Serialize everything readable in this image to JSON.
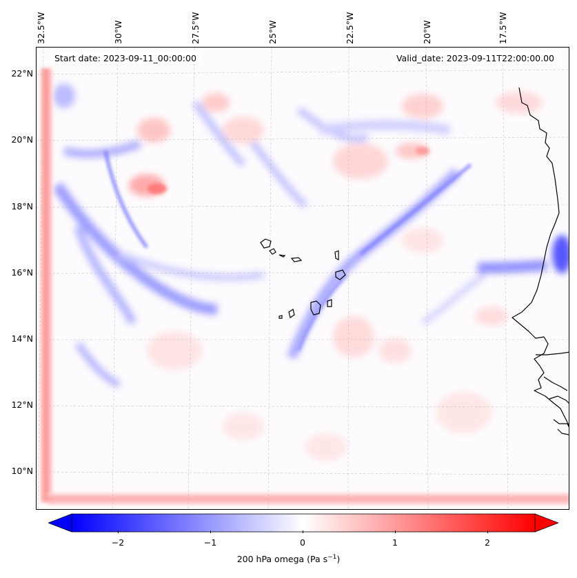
{
  "map": {
    "start_date": "Start date: 2023-09-11_00:00:00",
    "valid_date": "Valid_date: 2023-09-11T22:00:00.00",
    "lon_labels": [
      "32.5°W",
      "30°W",
      "27.5°W",
      "25°W",
      "22.5°W",
      "20°W",
      "17.5°W"
    ],
    "lat_labels": [
      "22°N",
      "20°N",
      "18°N",
      "16°N",
      "14°N",
      "12°N",
      "10°N"
    ],
    "coastline_color": "#000000",
    "grid": true,
    "field_colors": {
      "negative": "#0000ff",
      "zero": "#ffffff",
      "positive": "#ff0000"
    }
  },
  "colorbar": {
    "label": "200 hPa omega (Pa s",
    "label_exponent": "−1",
    "label_close": ")",
    "ticks": [
      "−2",
      "−1",
      "0",
      "1",
      "2"
    ],
    "range": [
      -2.6,
      2.6
    ],
    "extend": "both"
  }
}
